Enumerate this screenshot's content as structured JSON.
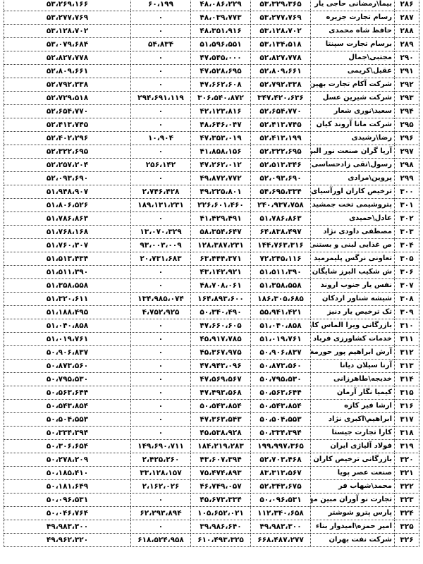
{
  "rows": [
    {
      "num": "۲۸۶",
      "name": "بیما\\رمضانی حاجی یار",
      "c1": "۵۳،۳۲۹،۳۶۵",
      "c2": "۴۸،۰۸۶،۲۲۹",
      "c3": "۶۰،۱۹۹",
      "c4": "۵۳،۲۶۹،۱۶۶"
    },
    {
      "num": "۲۸۷",
      "name": "رسام تجارت جزیره",
      "c1": "۵۳،۲۷۷،۷۶۹",
      "c2": "۴۸،۰۳۹،۷۷۳",
      "c3": "۰",
      "c4": "۵۳،۲۷۷،۷۶۹"
    },
    {
      "num": "۲۸۸",
      "name": "حافظ شاه محمدی",
      "c1": "۵۳،۱۲۸،۷۰۲",
      "c2": "۴۸،۳۵۱،۹۱۶",
      "c3": "۰",
      "c4": "۵۳،۱۲۸،۷۰۲"
    },
    {
      "num": "۲۸۹",
      "name": "برسام تجارت سپنتا",
      "c1": "۵۳،۱۳۴،۵۱۸",
      "c2": "۵۱،۵۹۶،۵۵۱",
      "c3": "۵۴،۸۳۴",
      "c4": "۵۳،۰۷۹،۶۸۴"
    },
    {
      "num": "۲۹۰",
      "name": "مجتبی\\جمال",
      "c1": "۵۲،۸۲۷،۷۷۸",
      "c2": "۴۷،۵۴۵،۰۰۰",
      "c3": "۰",
      "c4": "۵۲،۸۲۷،۷۷۸"
    },
    {
      "num": "۲۹۱",
      "name": "عقیل\\کریمی",
      "c1": "۵۲،۸۰۹،۶۶۱",
      "c2": "۴۷،۵۲۸،۶۹۵",
      "c3": "۰",
      "c4": "۵۲،۸۰۹،۶۶۱"
    },
    {
      "num": "۲۹۲",
      "name": "شرکت آکام تجارت بهین هوا",
      "c1": "۵۲،۷۹۲،۳۳۸",
      "c2": "۴۷،۶۶۲،۶۰۸",
      "c3": "۰",
      "c4": "۵۲،۷۹۲،۳۳۸"
    },
    {
      "num": "۲۹۳",
      "name": "شرکت شیرین عسل",
      "c1": "۳۴۷،۴۲۰،۶۳۶",
      "c2": "۳۰۶،۵۴۰،۸۷۲",
      "c3": "۲۹۴،۶۹۱،۱۱۹",
      "c4": "۵۲،۷۲۹،۵۱۸"
    },
    {
      "num": "۲۹۴",
      "name": "سعید\\نوری شعار",
      "c1": "۵۲،۶۵۴،۷۷۰",
      "c2": "۴۲،۱۲۳،۸۱۶",
      "c3": "۰",
      "c4": "۵۲،۶۵۴،۷۷۰"
    },
    {
      "num": "۲۹۵",
      "name": "شرکت مانا آروند کیان",
      "c1": "۵۲،۴۱۳،۷۴۵",
      "c2": "۴۸،۶۴۶،۰۴۷",
      "c3": "۰",
      "c4": "۵۲،۴۱۳،۷۴۵"
    },
    {
      "num": "۲۹۶",
      "name": "رضا\\رشیدی",
      "c1": "۵۲،۴۱۳،۱۹۹",
      "c2": "۴۷،۳۵۳،۰۱۹",
      "c3": "۱۰،۹۰۴",
      "c4": "۵۲،۴۰۲،۲۹۶"
    },
    {
      "num": "۲۹۷",
      "name": "آریا گران صنعت نور البرز",
      "c1": "۵۲،۳۲۲،۶۹۵",
      "c2": "۴۱،۸۵۸،۱۵۶",
      "c3": "۰",
      "c4": "۵۲،۳۲۲،۶۹۵"
    },
    {
      "num": "۲۹۸",
      "name": "رسول\\تقی زادحساسی",
      "c1": "۵۲،۵۱۳،۳۴۶",
      "c2": "۴۷،۲۶۲،۰۱۲",
      "c3": "۲۵۶،۱۴۲",
      "c4": "۵۲،۲۵۷،۲۰۴"
    },
    {
      "num": "۲۹۹",
      "name": "پروین\\مرادی",
      "c1": "۵۲،۰۹۳،۶۹۰",
      "c2": "۴۹،۸۷۲،۷۷۲",
      "c3": "۰",
      "c4": "۵۲،۰۹۳،۶۹۰"
    },
    {
      "num": "۳۰۰",
      "name": "ترخیص کاران اورآسیای فجر",
      "c1": "۵۴،۶۹۵،۳۳۴",
      "c2": "۴۹،۲۲۵،۸۰۱",
      "c3": "۲،۷۴۶،۴۲۸",
      "c4": "۵۱،۹۴۸،۹۰۷"
    },
    {
      "num": "۳۰۱",
      "name": "پتروشیمی تخت جمشید",
      "c1": "۲۴۰،۹۳۷،۷۵۸",
      "c2": "۲۲۶،۶۰۱،۴۶۰",
      "c3": "۱۸۹،۱۳۱،۲۳۱",
      "c4": "۵۱،۸۰۶،۵۲۶"
    },
    {
      "num": "۳۰۲",
      "name": "عادل\\حمیدی",
      "c1": "۵۱،۷۸۶،۸۶۳",
      "c2": "۴۱،۴۲۹،۴۹۱",
      "c3": "۰",
      "c4": "۵۱،۷۸۶،۸۶۳"
    },
    {
      "num": "۳۰۳",
      "name": "مصطفی داودی نژاد",
      "c1": "۶۴،۸۳۸،۴۹۷",
      "c2": "۵۸،۳۵۴،۶۴۷",
      "c3": "۱۳،۰۷۰،۳۲۹",
      "c4": "۵۱،۷۶۸،۱۶۸"
    },
    {
      "num": "۳۰۴",
      "name": "ص غذایی لبنی و بستنی میهن",
      "c1": "۱۴۴،۷۶۳،۳۱۶",
      "c2": "۱۲۸،۳۸۷،۲۳۱",
      "c3": "۹۳،۰۰۳،۰۰۹",
      "c4": "۵۱،۷۶۰،۳۰۷"
    },
    {
      "num": "۳۰۵",
      "name": "تعاونی نرگس پلیمرمید",
      "c1": "۷۲،۲۴۵،۱۱۶",
      "c2": "۶۳،۴۴۴،۳۷۱",
      "c3": "۲۰،۷۳۱،۶۸۳",
      "c4": "۵۱،۵۱۳،۴۳۴"
    },
    {
      "num": "۳۰۶",
      "name": "ش شکیب البرز شایگان",
      "c1": "۵۱،۵۱۱،۳۹۰",
      "c2": "۴۳،۱۴۲،۹۲۱",
      "c3": "۰",
      "c4": "۵۱،۵۱۱،۳۹۰"
    },
    {
      "num": "۳۰۷",
      "name": "نفس یار جنوب اروند",
      "c1": "۵۱،۳۵۸،۵۵۸",
      "c2": "۴۸،۷۰۸،۰۶۱",
      "c3": "۰",
      "c4": "۵۱،۳۵۸،۵۵۸"
    },
    {
      "num": "۳۰۸",
      "name": "شیشه شناور اردکان",
      "c1": "۱۸۶،۳۰۵،۶۸۵",
      "c2": "۱۶۴،۸۹۳،۶۰۰",
      "c3": "۱۳۴،۹۸۵،۰۷۴",
      "c4": "۵۱،۳۲۰،۶۱۱"
    },
    {
      "num": "۳۰۹",
      "name": "تک ترخیص یار دنیز",
      "c1": "۵۵،۹۴۱،۴۲۱",
      "c2": "۵۰،۳۴۰،۴۹۰",
      "c3": "۴،۷۵۲،۹۲۵",
      "c4": "۵۱،۱۸۸،۴۹۵"
    },
    {
      "num": "۳۱۰",
      "name": "بازرگانی ویرا الماس کاوه",
      "c1": "۵۱،۰۴۰،۸۵۸",
      "c2": "۴۷،۶۶۰،۶۰۵",
      "c3": "۰",
      "c4": "۵۱،۰۴۰،۸۵۸"
    },
    {
      "num": "۳۱۱",
      "name": "خدمات کشاورزی فرباد کردستان",
      "c1": "۵۱،۰۱۹،۷۶۱",
      "c2": "۴۵،۹۱۷،۷۸۵",
      "c3": "۰",
      "c4": "۵۱،۰۱۹،۷۶۱"
    },
    {
      "num": "۳۱۲",
      "name": "آرش ابراهیم پور حورمغان",
      "c1": "۵۰،۹۰۶،۸۳۷",
      "c2": "۴۵،۳۶۷،۹۷۵",
      "c3": "۰",
      "c4": "۵۰،۹۰۶،۸۳۷"
    },
    {
      "num": "۳۱۳",
      "name": "آرنا سیلان دیانا",
      "c1": "۵۰،۸۷۳،۵۶۰",
      "c2": "۴۷،۹۴۳،۰۹۶",
      "c3": "۰",
      "c4": "۵۰،۸۷۳،۵۶۰"
    },
    {
      "num": "۳۱۴",
      "name": "خدیجه\\طاهرزانی",
      "c1": "۵۰،۷۹۵،۵۳۰",
      "c2": "۴۷،۵۶۹،۵۶۷",
      "c3": "۰",
      "c4": "۵۰،۷۹۵،۵۳۰"
    },
    {
      "num": "۳۱۵",
      "name": "کیمیا نگار آرمان",
      "c1": "۵۰،۵۶۳،۶۴۴",
      "c2": "۴۷،۴۹۳،۵۶۸",
      "c3": "۰",
      "c4": "۵۰،۵۶۳،۶۴۴"
    },
    {
      "num": "۳۱۶",
      "name": "ارشا فیر کازه",
      "c1": "۵۰،۵۴۳،۸۵۴",
      "c2": "۵۰،۵۴۳،۸۵۴",
      "c3": "۰",
      "c4": "۵۰،۵۴۳،۸۵۴"
    },
    {
      "num": "۳۱۷",
      "name": "ابراهیم\\اکبری نژاد",
      "c1": "۵۰،۵۰۴،۵۵۳",
      "c2": "۴۷،۳۶۳،۵۴۳",
      "c3": "۰",
      "c4": "۵۰،۵۰۴،۵۵۳"
    },
    {
      "num": "۳۱۸",
      "name": "کارا تجارت جیستا",
      "c1": "۵۰،۳۳۴،۳۹۴",
      "c2": "۴۵،۵۳۸،۹۲۸",
      "c3": "۰",
      "c4": "۵۰،۳۳۴،۳۹۴"
    },
    {
      "num": "۳۱۹",
      "name": "فولاد آلیاژی ایران",
      "c1": "۱۹۹،۹۹۷،۳۶۵",
      "c2": "۱۸۴،۲۱۹،۲۸۳",
      "c3": "۱۴۹،۶۹۰،۷۱۱",
      "c4": "۵۰،۳۰۶،۶۵۴"
    },
    {
      "num": "۳۲۰",
      "name": "بازرگانی ترخیص کاران امرتات",
      "c1": "۵۲،۷۰۳،۴۶۸",
      "c2": "۴۳،۶۰۷،۳۹۴",
      "c3": "۲،۴۲۵،۲۶۰",
      "c4": "۵۰،۲۷۸،۲۰۹"
    },
    {
      "num": "۳۲۱",
      "name": "صنعت عصر پویا",
      "c1": "۸۳،۳۱۳،۵۶۷",
      "c2": "۷۵،۴۷۴،۸۹۳",
      "c3": "۳۳،۱۲۸،۱۵۷",
      "c4": "۵۰،۱۸۵،۴۱۰"
    },
    {
      "num": "۳۲۲",
      "name": "محمد\\شهاب فر",
      "c1": "۵۲،۳۴۳،۶۷۵",
      "c2": "۴۶،۷۴۹،۰۵۷",
      "c3": "۲،۱۶۲،۰۲۶",
      "c4": "۵۰،۱۸۱،۶۴۹"
    },
    {
      "num": "۳۲۳",
      "name": "تجارت نو آوران مبین مهام",
      "c1": "۵۰،۰۹۶،۵۳۱",
      "c2": "۴۵،۶۷۳،۳۳۴",
      "c3": "۰",
      "c4": "۵۰،۰۹۶،۵۳۱"
    },
    {
      "num": "۳۲۴",
      "name": "پارس پترو شوشتر",
      "c1": "۱۱۲،۳۴۰،۶۵۸",
      "c2": "۱۰۵،۶۵۲،۰۲۱",
      "c3": "۶۲،۲۹۳،۸۹۴",
      "c4": "۵۰،۰۴۶،۷۶۴"
    },
    {
      "num": "۳۲۵",
      "name": "امیر حمزه\\امیدوار بناء",
      "c1": "۴۹،۹۸۳،۳۰۰",
      "c2": "۳۹،۹۸۶،۶۴۰",
      "c3": "۰",
      "c4": "۴۹،۹۸۳،۳۰۰"
    },
    {
      "num": "۳۲۶",
      "name": "شرکت نفت بهران",
      "c1": "۶۶۸،۴۸۷،۲۷۷",
      "c2": "۶۱۰،۴۹۳،۳۲۵",
      "c3": "۶۱۸،۵۲۴،۹۵۸",
      "c4": "۴۹،۹۶۲،۳۲۰"
    }
  ]
}
